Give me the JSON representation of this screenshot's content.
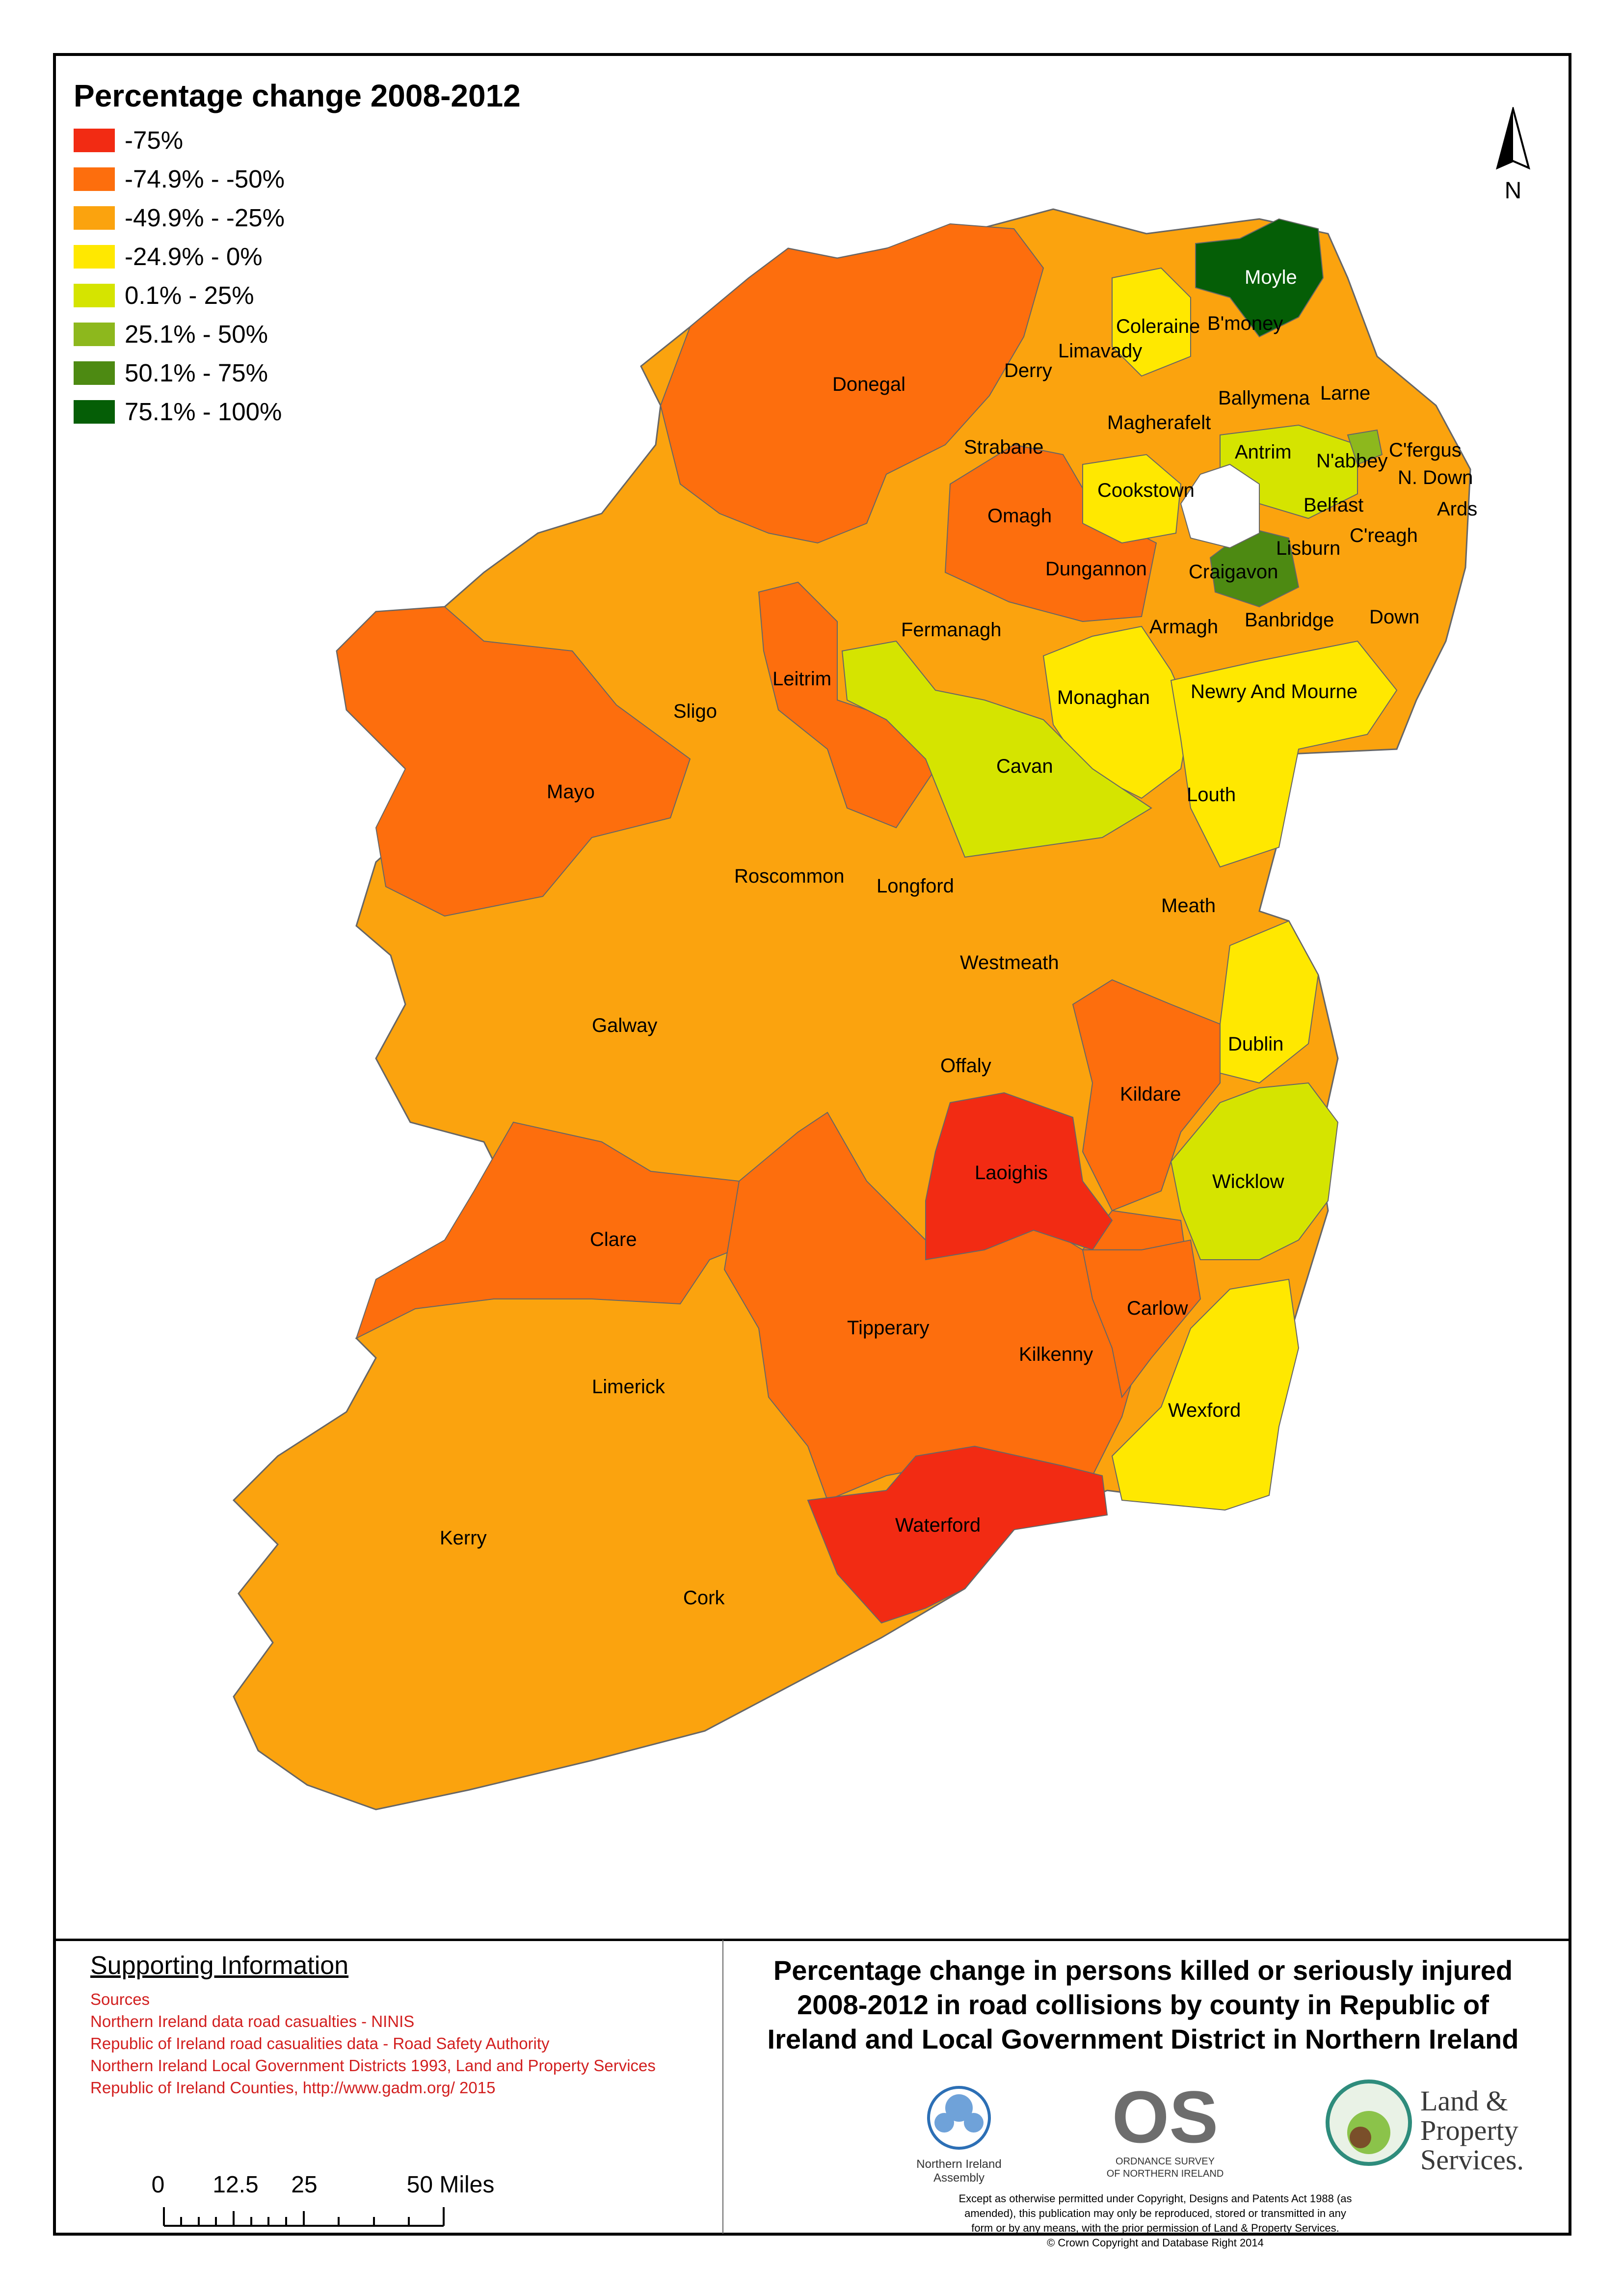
{
  "legend": {
    "title": "Percentage change 2008-2012",
    "items": [
      {
        "label": "-75%",
        "color": "#f22b13"
      },
      {
        "label": "-74.9% - -50%",
        "color": "#fd6e0d"
      },
      {
        "label": "-49.9% - -25%",
        "color": "#fba30e"
      },
      {
        "label": "-24.9% - 0%",
        "color": "#ffe800"
      },
      {
        "label": "0.1% - 25%",
        "color": "#d5e400"
      },
      {
        "label": "25.1% - 50%",
        "color": "#8db81d"
      },
      {
        "label": "50.1% - 75%",
        "color": "#4d8a12"
      },
      {
        "label": "75.1% - 100%",
        "color": "#055e06"
      }
    ]
  },
  "north_arrow": {
    "label": "N"
  },
  "regions": {
    "donegal": "Donegal",
    "derry": "Derry",
    "limavady": "Limavady",
    "coleraine": "Coleraine",
    "moyle": "Moyle",
    "bmoney": "B'money",
    "ballymena": "Ballymena",
    "larne": "Larne",
    "strabane": "Strabane",
    "magherafelt": "Magherafelt",
    "antrim": "Antrim",
    "cfergus": "C'fergus",
    "nabbey": "N'abbey",
    "ndown": "N. Down",
    "cookstown": "Cookstown",
    "belfast": "Belfast",
    "ards": "Ards",
    "creagh": "C'reagh",
    "omagh": "Omagh",
    "lisburn": "Lisburn",
    "craigavon": "Craigavon",
    "dungannon": "Dungannon",
    "armagh": "Armagh",
    "banbridge": "Banbridge",
    "down": "Down",
    "fermanagh": "Fermanagh",
    "monaghan": "Monaghan",
    "newry": "Newry And Mourne",
    "leitrim": "Leitrim",
    "sligo": "Sligo",
    "cavan": "Cavan",
    "mayo": "Mayo",
    "louth": "Louth",
    "roscommon": "Roscommon",
    "longford": "Longford",
    "meath": "Meath",
    "westmeath": "Westmeath",
    "galway": "Galway",
    "dublin": "Dublin",
    "offaly": "Offaly",
    "kildare": "Kildare",
    "laoighis": "Laoighis",
    "wicklow": "Wicklow",
    "clare": "Clare",
    "carlow": "Carlow",
    "tipperary": "Tipperary",
    "kilkenny": "Kilkenny",
    "limerick": "Limerick",
    "wexford": "Wexford",
    "waterford": "Waterford",
    "kerry": "Kerry",
    "cork": "Cork"
  },
  "support": {
    "title": "Supporting Information",
    "sources": [
      "Sources",
      "Northern Ireland data road casualties - NINIS",
      "Republic of Ireland road casualities data - Road Safety Authority",
      "Northern Ireland Local Government Districts 1993, Land and Property Services",
      "Republic of Ireland Counties, http://www.gadm.org/ 2015"
    ]
  },
  "scale": {
    "t0": "0",
    "t1": "12.5",
    "t2": "25",
    "t3": "50 Miles"
  },
  "title": {
    "line1": "Percentage change in persons killed or seriously injured",
    "line2": "2008-2012 in road collisions by county in Republic of",
    "line3": "Ireland and Local Government District in Northern Ireland"
  },
  "logos": {
    "nia_line1": "Northern Ireland",
    "nia_line2": "Assembly",
    "os_line1": "ORDNANCE SURVEY",
    "os_line2": "OF NORTHERN IRELAND",
    "lps_line1": "Land &",
    "lps_line2": "Property",
    "lps_line3": "Services."
  },
  "legal": {
    "line1": "Except as otherwise permitted under Copyright, Designs and Patents Act 1988 (as",
    "line2": "amended), this publication may only be reproduced, stored or transmitted in any",
    "line3": "form or by any means, with the prior permission of Land & Property Services.",
    "line4": "© Crown Copyright and Database Right 2014"
  }
}
